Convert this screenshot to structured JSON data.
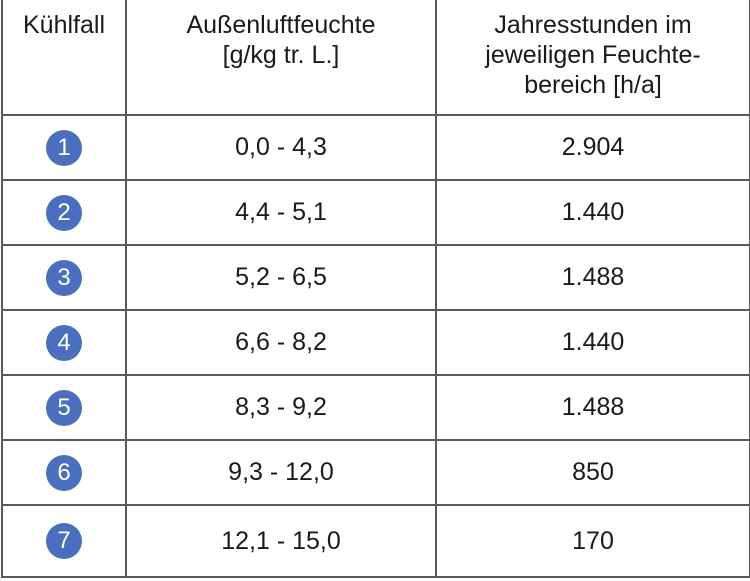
{
  "headers": [
    "Kühlfall",
    "Außenluftfeuchte\n[g/kg tr. L.]",
    "Jahresstunden im\njeweiligen Feuchte-\nbereich [h/a]"
  ],
  "header_lines": {
    "col1": [
      "Kühlfall"
    ],
    "col2": [
      "Außenluftfeuchte",
      "[g/kg tr. L.]"
    ],
    "col3": [
      "Jahresstunden im",
      "jeweiligen Feuchte-",
      "bereich [h/a]"
    ]
  },
  "rows": [
    {
      "case": "1",
      "humidity": "0,0 - 4,3",
      "hours": "2.904"
    },
    {
      "case": "2",
      "humidity": "4,4 - 5,1",
      "hours": "1.440"
    },
    {
      "case": "3",
      "humidity": "5,2 - 6,5",
      "hours": "1.488"
    },
    {
      "case": "4",
      "humidity": "6,6 - 8,2",
      "hours": "1.440"
    },
    {
      "case": "5",
      "humidity": "8,3 - 9,2",
      "hours": "1.488"
    },
    {
      "case": "6",
      "humidity": "9,3 - 12,0",
      "hours": "850"
    },
    {
      "case": "7",
      "humidity": "12,1 - 15,0",
      "hours": "170"
    }
  ],
  "colors": {
    "badge": "#4a6fbf",
    "border": "#5a5a5a"
  }
}
